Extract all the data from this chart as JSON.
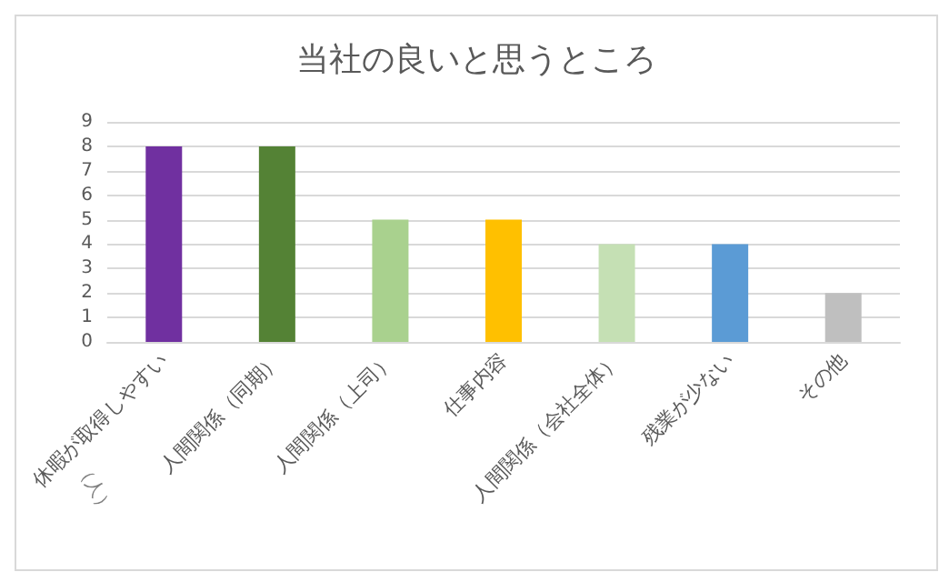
{
  "chart_data": {
    "type": "bar",
    "title": "当社の良いと思うところ",
    "ylabel": "（人）",
    "categories": [
      "休暇が取得しやすい",
      "人間関係（同期）",
      "人間関係（上司）",
      "仕事内容",
      "人間関係（会社全体）",
      "残業が少ない",
      "その他"
    ],
    "values": [
      8,
      8,
      5,
      5,
      4,
      4,
      2
    ],
    "colors": [
      "#7030a0",
      "#548235",
      "#a9d18e",
      "#ffc000",
      "#c5e0b4",
      "#5b9bd5",
      "#bfbfbf"
    ],
    "ylim": [
      0,
      9
    ],
    "yticks": [
      0,
      1,
      2,
      3,
      4,
      5,
      6,
      7,
      8,
      9
    ],
    "grid": "y"
  }
}
